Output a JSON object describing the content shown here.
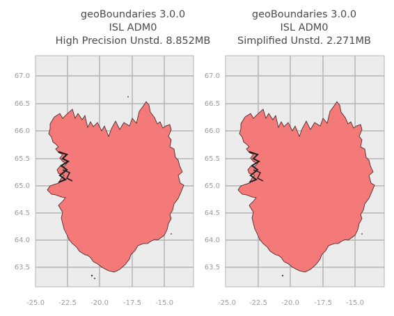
{
  "maps": [
    {
      "title_lines": [
        "geoBoundaries 3.0.0",
        "ISL ADM0",
        "High Precision Unstd. 8.852MB"
      ],
      "y_ticks": [
        "67.0",
        "66.5",
        "66.0",
        "65.5",
        "65.0",
        "64.5",
        "64.0",
        "63.5"
      ],
      "x_ticks": [
        "-25.0",
        "-22.5",
        "-20.0",
        "-17.5",
        "-15.0"
      ]
    },
    {
      "title_lines": [
        "geoBoundaries 3.0.0",
        "ISL ADM0",
        "Simplified Unstd. 2.271MB"
      ],
      "y_ticks": [
        "67.0",
        "66.5",
        "66.0",
        "65.5",
        "65.0",
        "64.5",
        "64.0",
        "63.5"
      ],
      "x_ticks": [
        "-25.0",
        "-22.5",
        "-20.0",
        "-17.5",
        "-15.0"
      ]
    }
  ],
  "colors": {
    "land_fill": "#f47a7a",
    "coast_stroke": "#3a1f1f",
    "panel_bg": "#ececec",
    "grid": "#b4b4b4"
  }
}
